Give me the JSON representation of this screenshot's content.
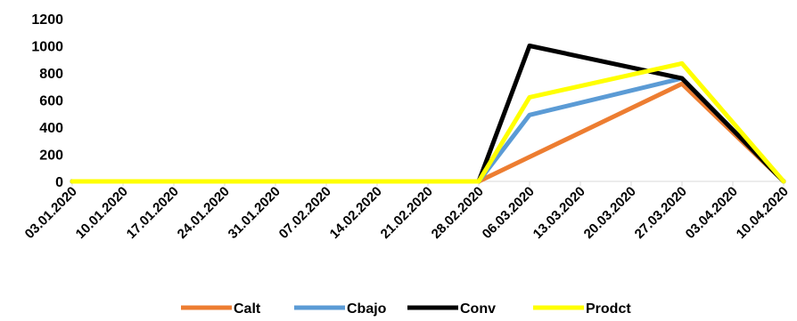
{
  "chart_data": {
    "type": "line",
    "categories": [
      "03.01.2020",
      "10.01.2020",
      "17.01.2020",
      "24.01.2020",
      "31.01.2020",
      "07.02.2020",
      "14.02.2020",
      "21.02.2020",
      "28.02.2020",
      "06.03.2020",
      "13.03.2020",
      "20.03.2020",
      "27.03.2020",
      "03.04.2020",
      "10.04.2020"
    ],
    "y_ticks": [
      "0",
      "200",
      "400",
      "600",
      "800",
      "1000",
      "1200"
    ],
    "ylim": [
      0,
      1200
    ],
    "grid": false,
    "legend_position": "bottom",
    "series": [
      {
        "name": "Calt",
        "color": "#ED7D31",
        "x": [
          "03.01.2020",
          "28.02.2020",
          "06.03.2020",
          "27.03.2020",
          "10.04.2020"
        ],
        "values": [
          0,
          0,
          180,
          720,
          0
        ]
      },
      {
        "name": "Cbajo",
        "color": "#5B9BD5",
        "x": [
          "03.01.2020",
          "28.02.2020",
          "06.03.2020",
          "27.03.2020",
          "10.04.2020"
        ],
        "values": [
          0,
          0,
          490,
          760,
          0
        ]
      },
      {
        "name": "Conv",
        "color": "#000000",
        "x": [
          "03.01.2020",
          "28.02.2020",
          "06.03.2020",
          "27.03.2020",
          "10.04.2020"
        ],
        "values": [
          0,
          0,
          1000,
          760,
          0
        ]
      },
      {
        "name": "Prodct",
        "color": "#FFFF00",
        "x": [
          "03.01.2020",
          "28.02.2020",
          "06.03.2020",
          "27.03.2020",
          "10.04.2020"
        ],
        "values": [
          0,
          0,
          620,
          870,
          0
        ]
      }
    ]
  }
}
